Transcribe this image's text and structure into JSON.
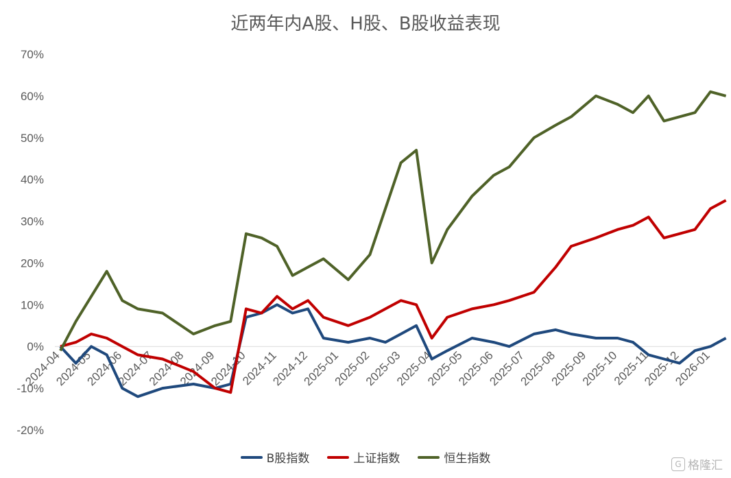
{
  "chart_data": {
    "type": "line",
    "title": "近两年内A股、H股、B股收益表现",
    "x_ticks": [
      "2024-04",
      "2024-05",
      "2024-06",
      "2024-07",
      "2024-08",
      "2024-09",
      "2024-10",
      "2024-11",
      "2024-12",
      "2025-01",
      "2025-02",
      "2025-03",
      "2025-04",
      "2025-05",
      "2025-06",
      "2025-07",
      "2025-08",
      "2025-09",
      "2025-10",
      "2025-11",
      "2025-12",
      "2026-01"
    ],
    "y_ticks": [
      "70%",
      "60%",
      "50%",
      "40%",
      "30%",
      "20%",
      "10%",
      "0%",
      "-10%",
      "-20%"
    ],
    "ylim": [
      -20,
      70
    ],
    "x_range": [
      "2024-04",
      "2026-01"
    ],
    "legend_position": "bottom",
    "grid": false,
    "series": [
      {
        "name": "B股指数",
        "color": "#1F497D",
        "x": [
          "2024-04",
          "2024-04",
          "2024-05",
          "2024-05",
          "2024-06",
          "2024-06",
          "2024-07",
          "2024-08",
          "2024-09",
          "2024-09",
          "2024-10",
          "2024-10",
          "2024-11",
          "2024-11",
          "2024-12",
          "2024-12",
          "2025-01",
          "2025-02",
          "2025-02",
          "2025-03",
          "2025-03",
          "2025-04",
          "2025-04",
          "2025-05",
          "2025-06",
          "2025-06",
          "2025-07",
          "2025-08",
          "2025-08",
          "2025-09",
          "2025-10",
          "2025-10",
          "2025-11",
          "2025-11",
          "2025-12",
          "2025-12",
          "2026-01",
          "2026-01"
        ],
        "y": [
          0,
          -4,
          0,
          -2,
          -10,
          -12,
          -10,
          -9,
          -10,
          -9,
          7,
          8,
          10,
          8,
          9,
          2,
          1,
          2,
          1,
          3,
          5,
          -3,
          -1,
          2,
          1,
          0,
          3,
          4,
          3,
          2,
          2,
          1,
          -2,
          -3,
          -4,
          -1,
          0,
          2
        ]
      },
      {
        "name": "上证指数",
        "color": "#C00000",
        "x": [
          "2024-04",
          "2024-04",
          "2024-05",
          "2024-05",
          "2024-06",
          "2024-06",
          "2024-07",
          "2024-08",
          "2024-09",
          "2024-09",
          "2024-10",
          "2024-10",
          "2024-11",
          "2024-11",
          "2024-12",
          "2024-12",
          "2025-01",
          "2025-02",
          "2025-02",
          "2025-03",
          "2025-03",
          "2025-04",
          "2025-04",
          "2025-05",
          "2025-06",
          "2025-06",
          "2025-07",
          "2025-08",
          "2025-08",
          "2025-09",
          "2025-10",
          "2025-10",
          "2025-11",
          "2025-11",
          "2025-12",
          "2025-12",
          "2026-01",
          "2026-01"
        ],
        "y": [
          0,
          1,
          3,
          2,
          0,
          -2,
          -3,
          -6,
          -10,
          -11,
          9,
          8,
          12,
          9,
          11,
          7,
          5,
          7,
          9,
          11,
          10,
          2,
          7,
          9,
          10,
          11,
          13,
          19,
          24,
          26,
          28,
          29,
          31,
          26,
          27,
          28,
          33,
          35
        ]
      },
      {
        "name": "恒生指数",
        "color": "#4F6228",
        "x": [
          "2024-04",
          "2024-04",
          "2024-05",
          "2024-05",
          "2024-06",
          "2024-06",
          "2024-07",
          "2024-08",
          "2024-09",
          "2024-09",
          "2024-10",
          "2024-10",
          "2024-11",
          "2024-11",
          "2024-12",
          "2024-12",
          "2025-01",
          "2025-02",
          "2025-02",
          "2025-03",
          "2025-03",
          "2025-04",
          "2025-04",
          "2025-05",
          "2025-06",
          "2025-06",
          "2025-07",
          "2025-08",
          "2025-08",
          "2025-09",
          "2025-10",
          "2025-10",
          "2025-11",
          "2025-11",
          "2025-12",
          "2025-12",
          "2026-01",
          "2026-01"
        ],
        "y": [
          -1,
          6,
          12,
          18,
          11,
          9,
          8,
          3,
          5,
          6,
          27,
          26,
          24,
          17,
          19,
          21,
          16,
          22,
          33,
          44,
          47,
          20,
          28,
          36,
          41,
          43,
          50,
          53,
          55,
          60,
          58,
          56,
          60,
          54,
          55,
          56,
          61,
          60
        ]
      }
    ]
  },
  "watermark": {
    "text": "格隆汇",
    "icon": "glh-logo-icon"
  }
}
